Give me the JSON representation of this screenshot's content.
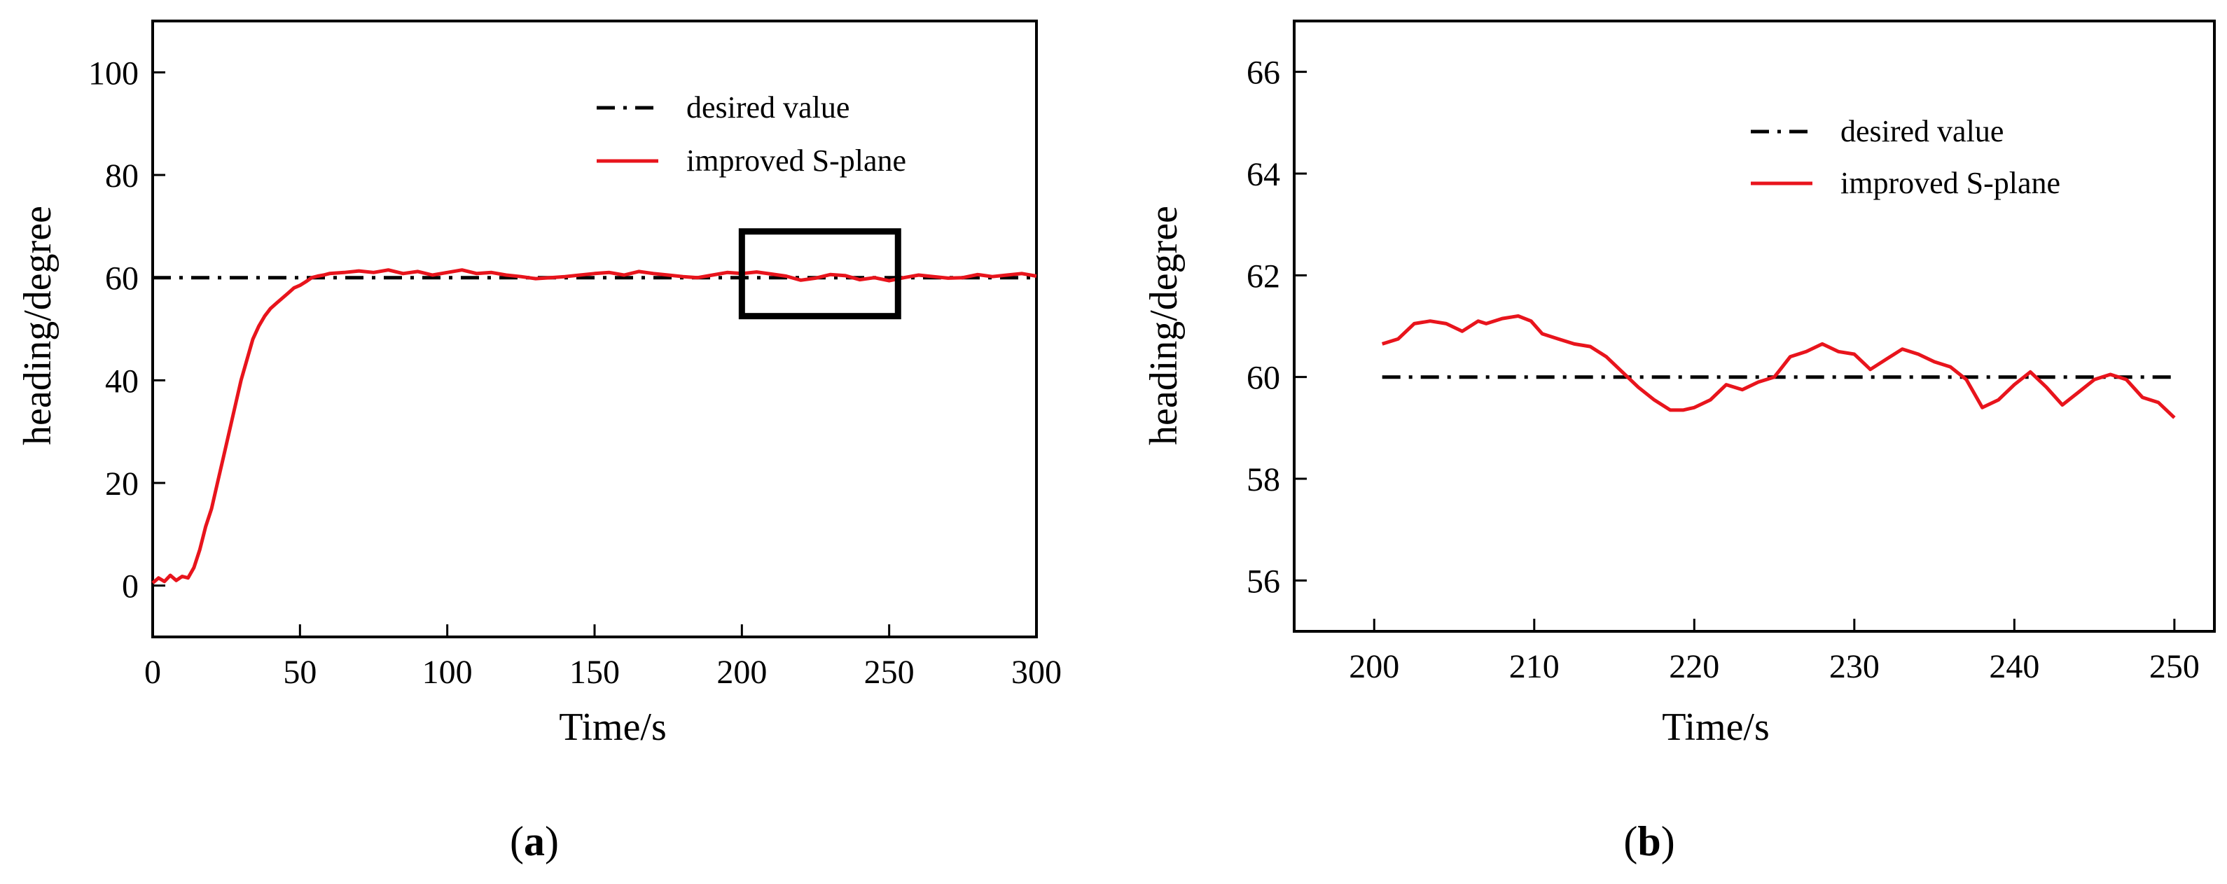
{
  "chart_data": [
    {
      "type": "line",
      "panel": "(a)",
      "panel_letter": "a",
      "xlabel": "Time/s",
      "ylabel": "heading/degree",
      "xlim": [
        0,
        300
      ],
      "ylim": [
        -10,
        110
      ],
      "xticks": [
        0,
        50,
        100,
        150,
        200,
        250,
        300
      ],
      "yticks": [
        0,
        20,
        40,
        60,
        80,
        100
      ],
      "legend": [
        "desired value",
        "improved S-plane"
      ],
      "highlight_box": {
        "x": [
          200,
          253
        ],
        "y": [
          52.5,
          69
        ]
      },
      "series": [
        {
          "name": "desired value",
          "style": "dash-dot",
          "color": "#000000",
          "x": [
            0,
            300
          ],
          "y": [
            60,
            60
          ]
        },
        {
          "name": "improved S-plane",
          "style": "solid",
          "color": "#e8141c",
          "x": [
            0,
            2,
            4,
            6,
            8,
            10,
            12,
            14,
            16,
            18,
            20,
            22,
            24,
            26,
            28,
            30,
            32,
            34,
            36,
            38,
            40,
            42,
            44,
            46,
            48,
            50,
            52,
            54,
            56,
            58,
            60,
            65,
            70,
            75,
            80,
            85,
            90,
            95,
            100,
            105,
            110,
            115,
            120,
            125,
            130,
            135,
            140,
            145,
            150,
            155,
            160,
            165,
            170,
            175,
            180,
            185,
            190,
            195,
            200,
            205,
            210,
            215,
            220,
            225,
            230,
            235,
            240,
            245,
            250,
            255,
            260,
            265,
            270,
            275,
            280,
            285,
            290,
            295,
            300
          ],
          "y": [
            0.5,
            1.5,
            0.8,
            2.0,
            1.0,
            1.8,
            1.5,
            3.5,
            7.0,
            11.5,
            15.0,
            20.0,
            25.0,
            30.0,
            35.0,
            40.0,
            44.0,
            48.0,
            50.5,
            52.5,
            54.0,
            55.0,
            56.0,
            57.0,
            58.0,
            58.5,
            59.2,
            60.0,
            60.3,
            60.5,
            60.8,
            61.0,
            61.3,
            61.0,
            61.5,
            60.8,
            61.2,
            60.5,
            61.0,
            61.5,
            60.8,
            61.0,
            60.5,
            60.2,
            59.8,
            60.0,
            60.2,
            60.5,
            60.8,
            61.0,
            60.5,
            61.2,
            60.8,
            60.5,
            60.2,
            60.0,
            60.5,
            61.0,
            60.8,
            61.1,
            60.7,
            60.3,
            59.5,
            59.9,
            60.6,
            60.4,
            59.6,
            60.0,
            59.4,
            60.0,
            60.5,
            60.2,
            59.9,
            60.0,
            60.6,
            60.2,
            60.5,
            60.8,
            60.3
          ]
        }
      ]
    },
    {
      "type": "line",
      "panel": "(b)",
      "panel_letter": "b",
      "xlabel": "Time/s",
      "ylabel": "heading/degree",
      "xlim": [
        195,
        252.5
      ],
      "ylim": [
        55,
        67
      ],
      "xticks": [
        200,
        210,
        220,
        230,
        240,
        250
      ],
      "yticks": [
        56,
        58,
        60,
        62,
        64,
        66
      ],
      "legend": [
        "desired value",
        "improved S-plane"
      ],
      "series": [
        {
          "name": "desired value",
          "style": "dash-dot",
          "color": "#000000",
          "x": [
            200.5,
            250
          ],
          "y": [
            60,
            60
          ]
        },
        {
          "name": "improved S-plane",
          "style": "solid",
          "color": "#e8141c",
          "x": [
            200.5,
            201.5,
            202.5,
            203.5,
            204.5,
            205.5,
            206.5,
            207.0,
            208.0,
            209.0,
            209.8,
            210.5,
            211.5,
            212.5,
            213.5,
            214.5,
            215.5,
            216.5,
            217.5,
            218.5,
            219.3,
            220.0,
            221.0,
            222.0,
            223.0,
            224.0,
            225.0,
            226.0,
            227.0,
            228.0,
            229.0,
            230.0,
            231.0,
            232.0,
            233.0,
            234.0,
            235.0,
            236.0,
            237.0,
            238.0,
            239.0,
            240.0,
            241.0,
            242.0,
            243.0,
            244.0,
            245.0,
            246.0,
            247.0,
            248.0,
            249.0,
            250.0
          ],
          "y": [
            60.65,
            60.75,
            61.05,
            61.1,
            61.05,
            60.9,
            61.1,
            61.05,
            61.15,
            61.2,
            61.1,
            60.85,
            60.75,
            60.65,
            60.6,
            60.4,
            60.1,
            59.8,
            59.55,
            59.35,
            59.35,
            59.4,
            59.55,
            59.85,
            59.75,
            59.9,
            60.0,
            60.4,
            60.5,
            60.65,
            60.5,
            60.45,
            60.15,
            60.35,
            60.55,
            60.45,
            60.3,
            60.2,
            59.95,
            59.4,
            59.55,
            59.85,
            60.1,
            59.8,
            59.45,
            59.7,
            59.95,
            60.05,
            59.95,
            59.6,
            59.5,
            59.2
          ]
        }
      ]
    }
  ]
}
